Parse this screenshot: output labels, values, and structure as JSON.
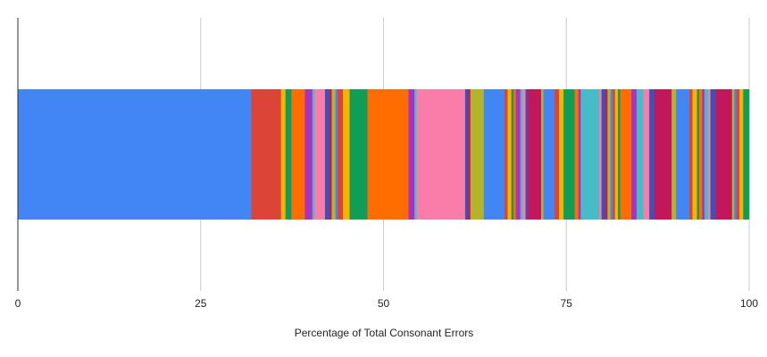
{
  "chart_data": {
    "type": "bar",
    "orientation": "horizontal",
    "stacked": true,
    "percent_stacked": true,
    "title": "",
    "xlabel": "Percentage of Total Consonant Errors",
    "ylabel": "",
    "xlim": [
      0,
      100
    ],
    "x_ticks": [
      0,
      25,
      50,
      75,
      100
    ],
    "x_tick_labels": [
      "0",
      "25",
      "50",
      "75",
      "100"
    ],
    "grid": "vertical",
    "legend": "none",
    "colors": [
      "#4285f4",
      "#db4437",
      "#f4b400",
      "#0f9d58",
      "#ff6d00",
      "#ab30c4",
      "#46bdc6",
      "#f97ca9",
      "#3f51b5",
      "#c2185b",
      "#b4b42a"
    ],
    "series_values": [
      31.3,
      4.0,
      0.6,
      0.8,
      1.8,
      1.0,
      0.3,
      1.4,
      0.6,
      0.3,
      0.5,
      0.3,
      0.7,
      0.9,
      2.4,
      5.5,
      0.8,
      0.3,
      6.5,
      0.4,
      0.3,
      1.8,
      2.8,
      0.4,
      0.5,
      0.3,
      0.3,
      0.6,
      0.3,
      0.4,
      0.3,
      1.8,
      0.3,
      1.5,
      0.6,
      0.6,
      1.5,
      0.5,
      0.3,
      2.5,
      0.3,
      0.5,
      0.3,
      0.4,
      0.3,
      0.3,
      0.4,
      0.3,
      1.5,
      0.7,
      0.9,
      0.8,
      0.7,
      2.3,
      0.6,
      1.8,
      0.4,
      0.6,
      0.3,
      0.4,
      0.3,
      0.5,
      0.3,
      0.7,
      2.2,
      0.3,
      0.3,
      0.4,
      0.5,
      0.8
    ]
  }
}
